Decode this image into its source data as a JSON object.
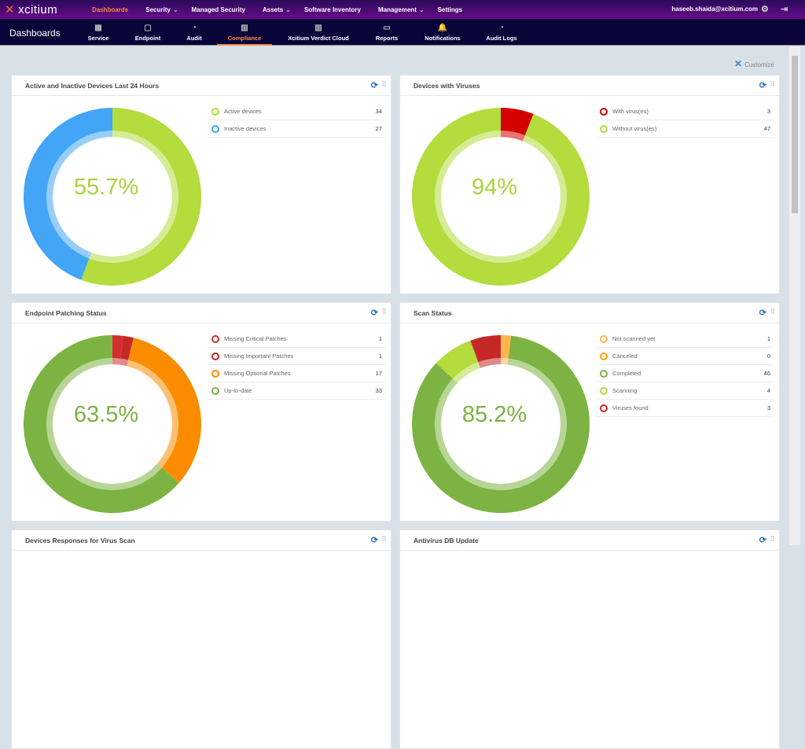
{
  "topnav": {
    "brand": "xcitium",
    "items": [
      "Dashboards",
      "Security",
      "Managed Security",
      "Assets",
      "Software Inventory",
      "Management",
      "Settings"
    ],
    "dropdown": [
      false,
      true,
      false,
      true,
      false,
      true,
      false
    ],
    "user": "haseeb.shaida@xcitium.com"
  },
  "subnav": {
    "title": "Dashboards",
    "tabs": [
      "Service",
      "Endpoint",
      "Audit",
      "Compliance",
      "Xcitium Verdict Cloud",
      "Reports",
      "Notifications",
      "Audit Logs"
    ],
    "active": "Compliance"
  },
  "customize": "Customize",
  "cards": [
    {
      "title": "Active and Inactive Devices Last 24 Hours",
      "center": "55.7%",
      "center_color": "#a8d43c",
      "items": [
        {
          "label": "Active devices",
          "value": 34,
          "color": "#b3dc3c"
        },
        {
          "label": "Inactive devices",
          "value": 27,
          "color": "#42a5f5"
        }
      ]
    },
    {
      "title": "Devices with Viruses",
      "center": "94%",
      "center_color": "#a8d43c",
      "items": [
        {
          "label": "With virus(es)",
          "value": 3,
          "color": "#d50000"
        },
        {
          "label": "Without virus(es)",
          "value": 47,
          "color": "#b3dc3c"
        }
      ]
    },
    {
      "title": "Endpoint Patching Status",
      "center": "63.5%",
      "center_color": "#7cb342",
      "items": [
        {
          "label": "Missing Critical Patches",
          "value": 1,
          "color": "#d32f2f"
        },
        {
          "label": "Missing Important Patches",
          "value": 1,
          "color": "#c62828"
        },
        {
          "label": "Missing Optional Patches",
          "value": 17,
          "color": "#fb8c00"
        },
        {
          "label": "Up-to-date",
          "value": 33,
          "color": "#7cb342"
        }
      ]
    },
    {
      "title": "Scan Status",
      "center": "85.2%",
      "center_color": "#7cb342",
      "items": [
        {
          "label": "Not scanned yet",
          "value": 1,
          "color": "#ffb74d"
        },
        {
          "label": "Canceled",
          "value": 0,
          "color": "#ffa000"
        },
        {
          "label": "Completed",
          "value": 46,
          "color": "#7cb342"
        },
        {
          "label": "Scanning",
          "value": 4,
          "color": "#b3dc3c"
        },
        {
          "label": "Viruses found",
          "value": 3,
          "color": "#c62828"
        }
      ]
    },
    {
      "title": "Devices Responses for Virus Scan"
    },
    {
      "title": "Antivirus DB Update"
    }
  ]
}
